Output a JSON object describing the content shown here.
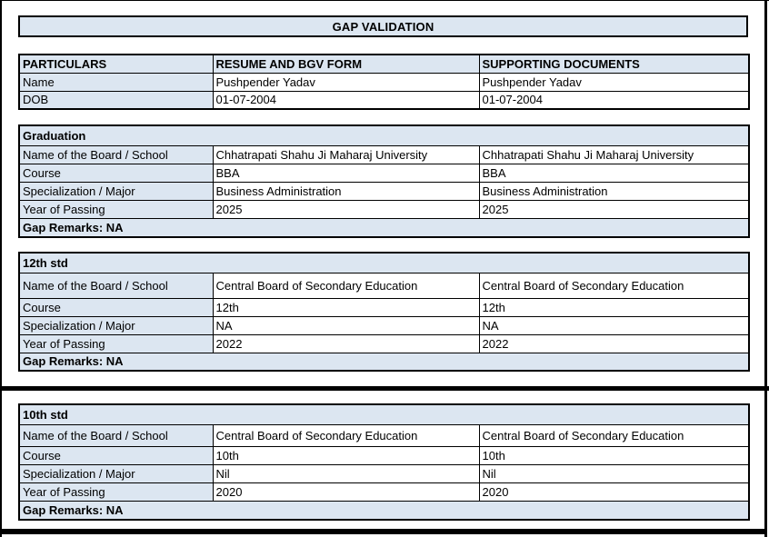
{
  "page": {
    "title": "GAP VALIDATION"
  },
  "colors": {
    "header_fill": "#dce6f1",
    "border": "#000000",
    "text": "#000000"
  },
  "summary": {
    "headers": [
      "PARTICULARS",
      "RESUME AND BGV FORM",
      "SUPPORTING DOCUMENTS"
    ],
    "rows": [
      {
        "label": "Name",
        "resume": "Pushpender Yadav",
        "supporting": "Pushpender Yadav"
      },
      {
        "label": "DOB",
        "resume": "01-07-2004",
        "supporting": "01-07-2004"
      }
    ]
  },
  "sections": [
    {
      "title": "Graduation",
      "rows": [
        {
          "label": "Name of the Board / School",
          "resume": "Chhatrapati Shahu Ji Maharaj University",
          "supporting": "Chhatrapati Shahu Ji Maharaj University"
        },
        {
          "label": "Course",
          "resume": "BBA",
          "supporting": "BBA"
        },
        {
          "label": "Specialization / Major",
          "resume": "Business Administration",
          "supporting": "Business Administration"
        },
        {
          "label": "Year of Passing",
          "resume": "2025",
          "supporting": "2025"
        }
      ],
      "gap_remarks": "Gap Remarks: NA"
    },
    {
      "title": "12th std",
      "rows": [
        {
          "label": "Name of the Board / School",
          "resume": "Central Board of Secondary Education",
          "supporting": "Central Board of Secondary Education"
        },
        {
          "label": "Course",
          "resume": "12th",
          "supporting": "12th"
        },
        {
          "label": "Specialization / Major",
          "resume": "NA",
          "supporting": "NA"
        },
        {
          "label": "Year of Passing",
          "resume": "2022",
          "supporting": "2022"
        }
      ],
      "gap_remarks": "Gap Remarks: NA"
    },
    {
      "title": "10th std",
      "rows": [
        {
          "label": "Name of the Board / School",
          "resume": "Central Board of Secondary Education",
          "supporting": "Central Board of Secondary Education"
        },
        {
          "label": "Course",
          "resume": "10th",
          "supporting": "10th"
        },
        {
          "label": "Specialization / Major",
          "resume": "Nil",
          "supporting": "Nil"
        },
        {
          "label": "Year of Passing",
          "resume": "2020",
          "supporting": "2020"
        }
      ],
      "gap_remarks": "Gap Remarks: NA"
    }
  ]
}
